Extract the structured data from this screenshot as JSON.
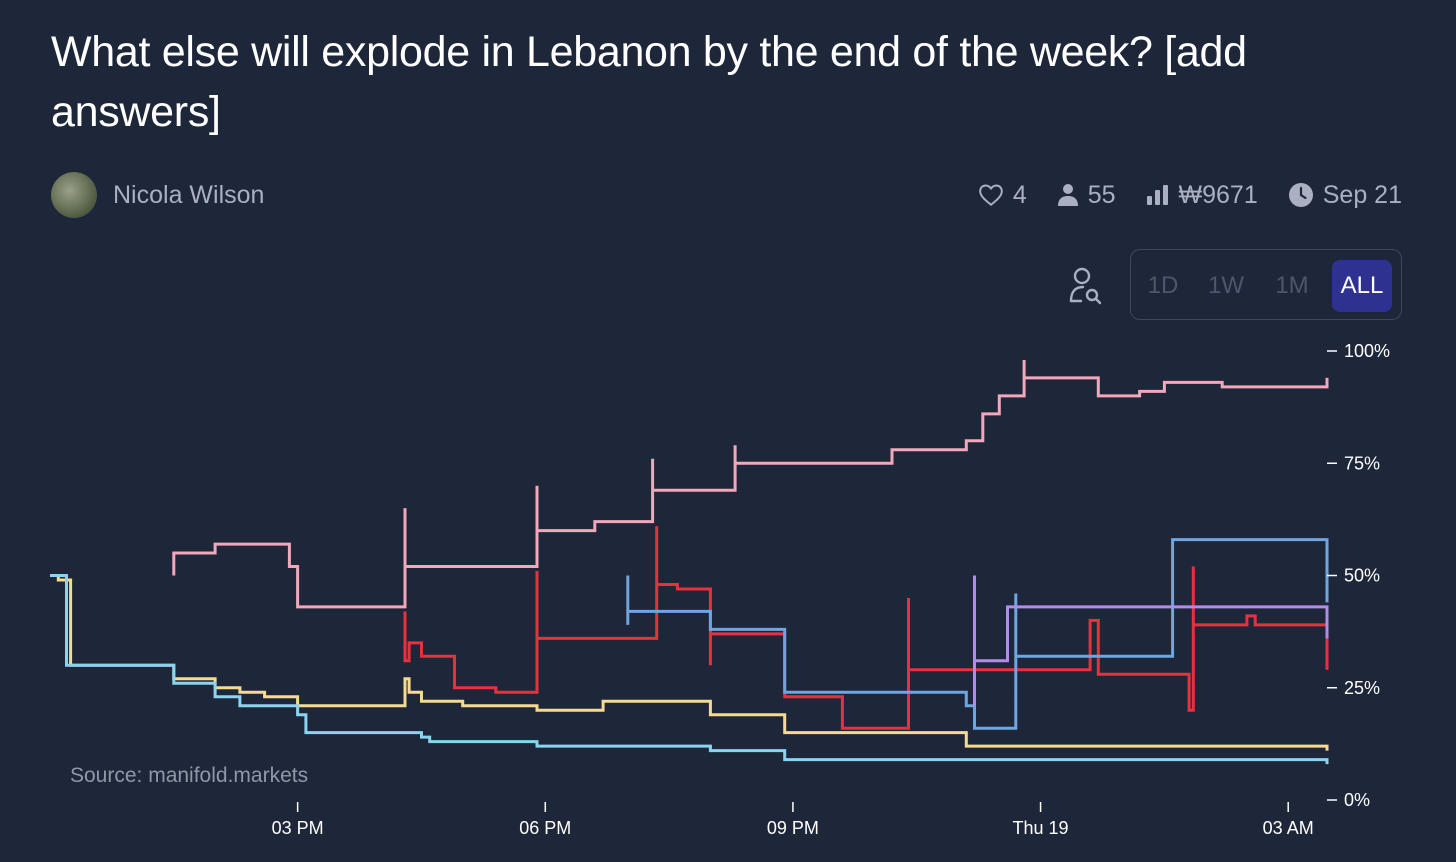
{
  "market": {
    "title": "What else will explode in Lebanon by the end of the week? [add answers]",
    "author": "Nicola Wilson"
  },
  "stats": {
    "likes": "4",
    "traders": "55",
    "volume": "₩9671",
    "close_date": "Sep 21"
  },
  "icons": {
    "likes": "heart-icon",
    "traders": "user-icon",
    "volume": "bar-chart-icon",
    "close_date": "clock-icon",
    "filter": "user-search-icon"
  },
  "time_range": {
    "options": [
      "1D",
      "1W",
      "1M",
      "ALL"
    ],
    "selected": "ALL"
  },
  "chart_data": {
    "type": "line",
    "step": true,
    "source": "Source: manifold.markets",
    "ylabel_ticks": [
      "100%",
      "75%",
      "50%",
      "25%",
      "0%"
    ],
    "ylim": [
      0,
      100
    ],
    "x_domain_hours": [
      12.0,
      27.47
    ],
    "x_ticks": [
      {
        "label": "03 PM",
        "hour": 15
      },
      {
        "label": "06 PM",
        "hour": 18
      },
      {
        "label": "09 PM",
        "hour": 21
      },
      {
        "label": "Thu 19",
        "hour": 24
      },
      {
        "label": "03 AM",
        "hour": 27
      }
    ],
    "series": [
      {
        "name": "pink",
        "color": "#f2a7bb",
        "points": [
          [
            13.5,
            50
          ],
          [
            13.5,
            55
          ],
          [
            14.0,
            55
          ],
          [
            14.0,
            57
          ],
          [
            14.9,
            57
          ],
          [
            14.9,
            52
          ],
          [
            15.0,
            52
          ],
          [
            15.0,
            43
          ],
          [
            16.3,
            43
          ],
          [
            16.3,
            65
          ],
          [
            16.3,
            52
          ],
          [
            17.9,
            52
          ],
          [
            17.9,
            70
          ],
          [
            17.9,
            60
          ],
          [
            18.6,
            60
          ],
          [
            18.6,
            62
          ],
          [
            19.3,
            62
          ],
          [
            19.3,
            76
          ],
          [
            19.3,
            69
          ],
          [
            20.3,
            69
          ],
          [
            20.3,
            79
          ],
          [
            20.3,
            75
          ],
          [
            22.2,
            75
          ],
          [
            22.2,
            78
          ],
          [
            23.1,
            78
          ],
          [
            23.1,
            80
          ],
          [
            23.3,
            80
          ],
          [
            23.3,
            86
          ],
          [
            23.5,
            86
          ],
          [
            23.5,
            90
          ],
          [
            23.8,
            90
          ],
          [
            23.8,
            98
          ],
          [
            23.8,
            94
          ],
          [
            24.7,
            94
          ],
          [
            24.7,
            90
          ],
          [
            25.2,
            90
          ],
          [
            25.2,
            91
          ],
          [
            25.5,
            91
          ],
          [
            25.5,
            93
          ],
          [
            26.2,
            93
          ],
          [
            26.2,
            92
          ],
          [
            27.47,
            92
          ],
          [
            27.47,
            94
          ]
        ]
      },
      {
        "name": "red",
        "color": "#e8313f",
        "points": [
          [
            16.3,
            42
          ],
          [
            16.3,
            31
          ],
          [
            16.35,
            31
          ],
          [
            16.35,
            35
          ],
          [
            16.5,
            35
          ],
          [
            16.5,
            32
          ],
          [
            16.9,
            32
          ],
          [
            16.9,
            25
          ],
          [
            17.4,
            25
          ],
          [
            17.4,
            24
          ],
          [
            17.9,
            24
          ],
          [
            17.9,
            51
          ],
          [
            17.9,
            36
          ],
          [
            19.35,
            36
          ],
          [
            19.35,
            61
          ],
          [
            19.35,
            48
          ],
          [
            19.6,
            48
          ],
          [
            19.6,
            47
          ],
          [
            20.0,
            47
          ],
          [
            20.0,
            30
          ],
          [
            20.0,
            37
          ],
          [
            20.9,
            37
          ],
          [
            20.9,
            23
          ],
          [
            21.6,
            23
          ],
          [
            21.6,
            16
          ],
          [
            22.4,
            16
          ],
          [
            22.4,
            45
          ],
          [
            22.4,
            29
          ],
          [
            24.6,
            29
          ],
          [
            24.6,
            40
          ],
          [
            24.7,
            40
          ],
          [
            24.7,
            28
          ],
          [
            25.8,
            28
          ],
          [
            25.8,
            20
          ],
          [
            25.85,
            20
          ],
          [
            25.85,
            52
          ],
          [
            25.85,
            39
          ],
          [
            26.5,
            39
          ],
          [
            26.5,
            41
          ],
          [
            26.6,
            41
          ],
          [
            26.6,
            39
          ],
          [
            27.47,
            39
          ],
          [
            27.47,
            29
          ]
        ]
      },
      {
        "name": "blue",
        "color": "#6ea6e0",
        "points": [
          [
            19.0,
            50
          ],
          [
            19.0,
            39
          ],
          [
            19.0,
            42
          ],
          [
            20.0,
            42
          ],
          [
            20.0,
            38
          ],
          [
            20.9,
            38
          ],
          [
            20.9,
            24
          ],
          [
            22.3,
            24
          ],
          [
            23.1,
            24
          ],
          [
            23.1,
            21
          ],
          [
            23.2,
            21
          ],
          [
            23.2,
            16
          ],
          [
            23.7,
            16
          ],
          [
            23.7,
            46
          ],
          [
            23.7,
            32
          ],
          [
            25.6,
            32
          ],
          [
            25.6,
            58
          ],
          [
            27.47,
            58
          ],
          [
            27.47,
            44
          ]
        ]
      },
      {
        "name": "purple",
        "color": "#b28de8",
        "points": [
          [
            23.2,
            50
          ],
          [
            23.2,
            21
          ],
          [
            23.2,
            31
          ],
          [
            23.6,
            31
          ],
          [
            23.6,
            43
          ],
          [
            27.47,
            43
          ],
          [
            27.47,
            36
          ]
        ]
      },
      {
        "name": "yellow",
        "color": "#f5db8f",
        "points": [
          [
            12.0,
            50
          ],
          [
            12.1,
            50
          ],
          [
            12.1,
            49
          ],
          [
            12.25,
            49
          ],
          [
            12.25,
            30
          ],
          [
            13.5,
            30
          ],
          [
            13.5,
            27
          ],
          [
            14.0,
            27
          ],
          [
            14.0,
            25
          ],
          [
            14.3,
            25
          ],
          [
            14.3,
            24
          ],
          [
            14.6,
            24
          ],
          [
            14.6,
            23
          ],
          [
            15.0,
            23
          ],
          [
            15.0,
            21
          ],
          [
            16.3,
            21
          ],
          [
            16.3,
            27
          ],
          [
            16.35,
            27
          ],
          [
            16.35,
            24
          ],
          [
            16.5,
            24
          ],
          [
            16.5,
            22
          ],
          [
            17.0,
            22
          ],
          [
            17.0,
            21
          ],
          [
            17.9,
            21
          ],
          [
            17.9,
            20
          ],
          [
            18.7,
            20
          ],
          [
            18.7,
            22
          ],
          [
            20.0,
            22
          ],
          [
            20.0,
            19
          ],
          [
            20.9,
            19
          ],
          [
            20.9,
            15
          ],
          [
            23.1,
            15
          ],
          [
            23.1,
            12
          ],
          [
            27.47,
            12
          ],
          [
            27.47,
            11
          ]
        ]
      },
      {
        "name": "light-blue",
        "color": "#8ad4f0",
        "points": [
          [
            12.0,
            50
          ],
          [
            12.2,
            50
          ],
          [
            12.2,
            30
          ],
          [
            12.2,
            30
          ],
          [
            13.5,
            30
          ],
          [
            13.5,
            26
          ],
          [
            14.0,
            26
          ],
          [
            14.0,
            23
          ],
          [
            14.3,
            23
          ],
          [
            14.3,
            21
          ],
          [
            15.0,
            21
          ],
          [
            15.0,
            19
          ],
          [
            15.1,
            19
          ],
          [
            15.1,
            15
          ],
          [
            16.5,
            15
          ],
          [
            16.5,
            14
          ],
          [
            16.6,
            14
          ],
          [
            16.6,
            13
          ],
          [
            17.9,
            13
          ],
          [
            17.9,
            12
          ],
          [
            20.0,
            12
          ],
          [
            20.0,
            11
          ],
          [
            20.9,
            11
          ],
          [
            20.9,
            9
          ],
          [
            27.47,
            9
          ],
          [
            27.47,
            8
          ]
        ]
      }
    ]
  }
}
